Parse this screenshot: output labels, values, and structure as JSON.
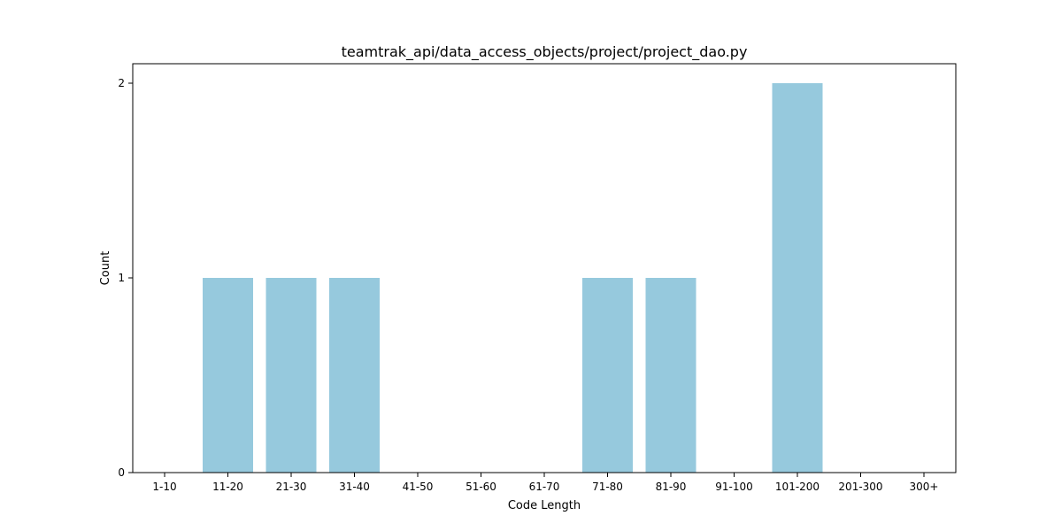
{
  "chart_data": {
    "type": "bar",
    "title": "teamtrak_api/data_access_objects/project/project_dao.py",
    "xlabel": "Code Length",
    "ylabel": "Count",
    "categories": [
      "1-10",
      "11-20",
      "21-30",
      "31-40",
      "41-50",
      "51-60",
      "61-70",
      "71-80",
      "81-90",
      "91-100",
      "101-200",
      "201-300",
      "300+"
    ],
    "values": [
      0,
      1,
      1,
      1,
      0,
      0,
      0,
      1,
      1,
      0,
      2,
      0,
      0
    ],
    "ylim": [
      0,
      2.1
    ],
    "yticks": [
      "0",
      "1",
      "2"
    ],
    "bar_color": "#96c9dd",
    "grid": false,
    "legend": "none"
  }
}
